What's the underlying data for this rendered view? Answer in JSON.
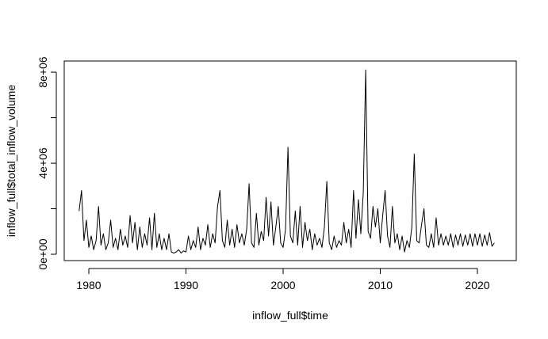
{
  "chart_data": {
    "type": "line",
    "xlabel": "inflow_full$time",
    "ylabel": "inflow_full$total_inflow_volume",
    "xlim": [
      1977.47,
      2024.0
    ],
    "ylim": [
      -278000,
      8490000
    ],
    "xticks": [
      1980,
      1990,
      2000,
      2010,
      2020
    ],
    "yticks": [
      {
        "value": 0,
        "label": "0e+00"
      },
      {
        "value": 2000000,
        "label": null
      },
      {
        "value": 4000000,
        "label": "4e+06"
      },
      {
        "value": 6000000,
        "label": null
      },
      {
        "value": 8000000,
        "label": "8e+06"
      }
    ],
    "series": [
      {
        "color": "#000000",
        "x": [
          1979,
          1979.25,
          1979.5,
          1979.75,
          1980,
          1980.25,
          1980.5,
          1980.75,
          1981,
          1981.25,
          1981.5,
          1981.75,
          1982,
          1982.25,
          1982.5,
          1982.75,
          1983,
          1983.25,
          1983.5,
          1983.75,
          1984,
          1984.25,
          1984.5,
          1984.75,
          1985,
          1985.25,
          1985.5,
          1985.75,
          1986,
          1986.25,
          1986.5,
          1986.75,
          1987,
          1987.25,
          1987.5,
          1987.75,
          1988,
          1988.25,
          1988.5,
          1988.75,
          1989,
          1989.25,
          1989.5,
          1989.75,
          1990,
          1990.25,
          1990.5,
          1990.75,
          1991,
          1991.25,
          1991.5,
          1991.75,
          1992,
          1992.25,
          1992.5,
          1992.75,
          1993,
          1993.25,
          1993.5,
          1993.75,
          1994,
          1994.25,
          1994.5,
          1994.75,
          1995,
          1995.25,
          1995.5,
          1995.75,
          1996,
          1996.25,
          1996.5,
          1996.75,
          1997,
          1997.25,
          1997.5,
          1997.75,
          1998,
          1998.25,
          1998.5,
          1998.75,
          1999,
          1999.25,
          1999.5,
          1999.75,
          2000,
          2000.25,
          2000.5,
          2000.75,
          2001,
          2001.25,
          2001.5,
          2001.75,
          2002,
          2002.25,
          2002.5,
          2002.75,
          2003,
          2003.25,
          2003.5,
          2003.75,
          2004,
          2004.25,
          2004.5,
          2004.75,
          2005,
          2005.25,
          2005.5,
          2005.75,
          2006,
          2006.25,
          2006.5,
          2006.75,
          2007,
          2007.25,
          2007.5,
          2007.75,
          2008,
          2008.25,
          2008.5,
          2008.75,
          2009,
          2009.25,
          2009.5,
          2009.75,
          2010,
          2010.25,
          2010.5,
          2010.75,
          2011,
          2011.25,
          2011.5,
          2011.75,
          2012,
          2012.25,
          2012.5,
          2012.75,
          2013,
          2013.25,
          2013.5,
          2013.75,
          2014,
          2014.25,
          2014.5,
          2014.75,
          2015,
          2015.25,
          2015.5,
          2015.75,
          2016,
          2016.25,
          2016.5,
          2016.75,
          2017,
          2017.25,
          2017.5,
          2017.75,
          2018,
          2018.25,
          2018.5,
          2018.75,
          2019,
          2019.25,
          2019.5,
          2019.75,
          2020,
          2020.25,
          2020.5,
          2020.75,
          2021,
          2021.25,
          2021.5,
          2021.75
        ],
        "values": [
          1900000,
          2800000,
          600000,
          1500000,
          300000,
          800000,
          200000,
          600000,
          2100000,
          400000,
          900000,
          200000,
          500000,
          1500000,
          300000,
          700000,
          200000,
          1100000,
          400000,
          800000,
          300000,
          1700000,
          500000,
          1400000,
          200000,
          1200000,
          300000,
          900000,
          400000,
          1600000,
          200000,
          1800000,
          300000,
          900000,
          200000,
          700000,
          200000,
          900000,
          100000,
          50000,
          100000,
          200000,
          50000,
          150000,
          100000,
          800000,
          200000,
          600000,
          300000,
          1200000,
          200000,
          700000,
          400000,
          1300000,
          300000,
          900000,
          500000,
          2100000,
          2800000,
          600000,
          300000,
          1500000,
          400000,
          1100000,
          300000,
          1300000,
          500000,
          900000,
          400000,
          1100000,
          3100000,
          500000,
          300000,
          1800000,
          400000,
          1000000,
          600000,
          2500000,
          800000,
          2300000,
          400000,
          1200000,
          2100000,
          500000,
          300000,
          1100000,
          4700000,
          800000,
          500000,
          1900000,
          400000,
          2100000,
          300000,
          1400000,
          600000,
          1100000,
          200000,
          900000,
          400000,
          700000,
          300000,
          1200000,
          3200000,
          500000,
          200000,
          800000,
          300000,
          600000,
          400000,
          1400000,
          500000,
          1100000,
          300000,
          2800000,
          700000,
          2400000,
          900000,
          2700000,
          8100000,
          1000000,
          700000,
          2100000,
          1200000,
          2000000,
          500000,
          1700000,
          2800000,
          800000,
          300000,
          2100000,
          500000,
          900000,
          200000,
          800000,
          100000,
          600000,
          300000,
          1200000,
          4400000,
          600000,
          500000,
          1300000,
          2000000,
          400000,
          300000,
          900000,
          300000,
          1600000,
          400000,
          900000,
          400000,
          800000,
          400000,
          900000,
          300000,
          850000,
          400000,
          900000,
          350000,
          850000,
          400000,
          900000,
          350000,
          900000,
          400000,
          900000,
          350000,
          850000,
          400000,
          950000,
          350000,
          500000
        ]
      }
    ]
  }
}
